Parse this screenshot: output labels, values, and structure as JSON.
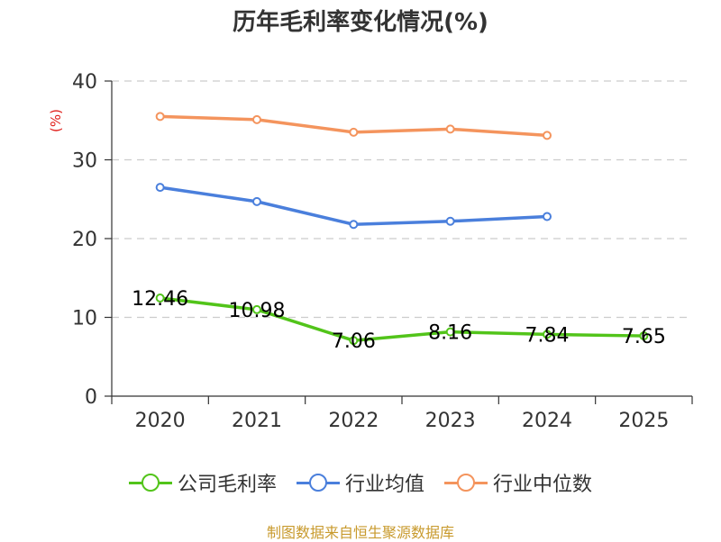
{
  "chart_data": {
    "type": "line",
    "title": "历年毛利率变化情况(%)",
    "ylabel": "(%)",
    "xlabel": "",
    "categories": [
      "2020",
      "2021",
      "2022",
      "2023",
      "2024",
      "2025"
    ],
    "ylim": [
      0,
      40
    ],
    "yticks": [
      0,
      10,
      20,
      30,
      40
    ],
    "grid": true,
    "legend_position": "bottom",
    "series": [
      {
        "name": "公司毛利率",
        "color": "#52c41a",
        "values": [
          12.46,
          10.98,
          7.06,
          8.16,
          7.84,
          7.65
        ],
        "labels": [
          "12.46",
          "10.98",
          "7.06",
          "8.16",
          "7.84",
          "7.65"
        ]
      },
      {
        "name": "行业均值",
        "color": "#4a7fdc",
        "values": [
          26.5,
          24.7,
          21.8,
          22.2,
          22.8,
          null
        ]
      },
      {
        "name": "行业中位数",
        "color": "#f4945d",
        "values": [
          35.5,
          35.1,
          33.5,
          33.9,
          33.1,
          null
        ]
      }
    ]
  },
  "source": "制图数据来自恒生聚源数据库"
}
